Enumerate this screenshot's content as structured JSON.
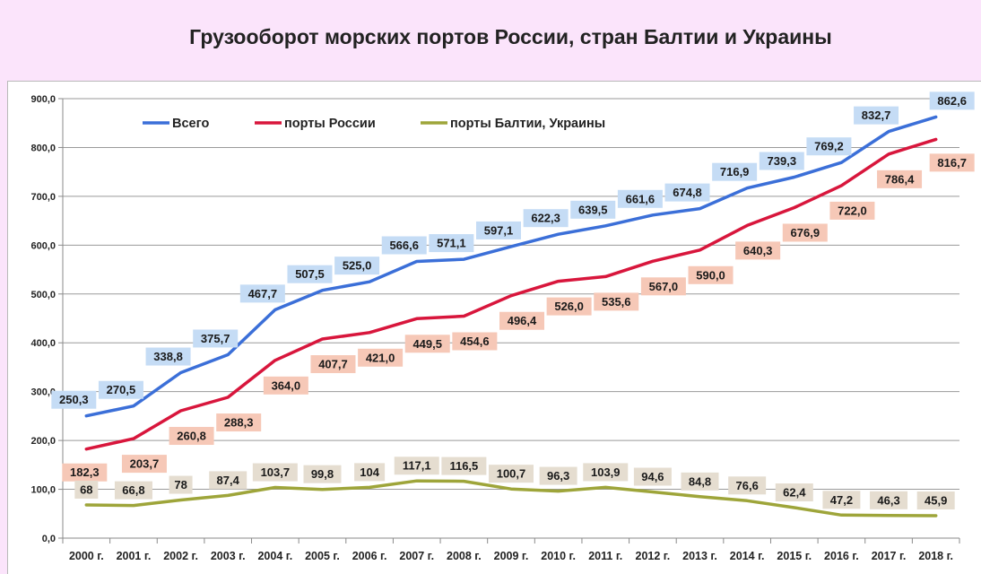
{
  "chart_data": {
    "type": "line",
    "title": "Грузооборот морских портов России, стран Балтии и Украины",
    "xlabel": "",
    "ylabel": "",
    "categories": [
      "2000 г.",
      "2001 г.",
      "2002 г.",
      "2003 г.",
      "2004 г.",
      "2005 г.",
      "2006 г.",
      "2007 г.",
      "2008 г.",
      "2009 г.",
      "2010 г.",
      "2011 г.",
      "2012 г.",
      "2013 г.",
      "2014 г.",
      "2015 г.",
      "2016 г.",
      "2017 г.",
      "2018 г."
    ],
    "ylim": [
      0,
      900
    ],
    "yticks": [
      0,
      100,
      200,
      300,
      400,
      500,
      600,
      700,
      800,
      900
    ],
    "ytick_labels": [
      "0,0",
      "100,0",
      "200,0",
      "300,0",
      "400,0",
      "500,0",
      "600,0",
      "700,0",
      "800,0",
      "900,0"
    ],
    "grid": true,
    "legend_position": "top-left",
    "series": [
      {
        "name": "Всего",
        "color": "#3b6fd8",
        "label_bg": "#c5dcf5",
        "values": [
          250.3,
          270.5,
          338.8,
          375.7,
          467.7,
          507.5,
          525.0,
          566.6,
          571.1,
          597.1,
          622.3,
          639.5,
          661.6,
          674.8,
          716.9,
          739.3,
          769.2,
          832.7,
          862.6
        ],
        "labels": [
          "250,3",
          "270,5",
          "338,8",
          "375,7",
          "467,7",
          "507,5",
          "525,0",
          "566,6",
          "571,1",
          "597,1",
          "622,3",
          "639,5",
          "661,6",
          "674,8",
          "716,9",
          "739,3",
          "769,2",
          "832,7",
          "862,6"
        ]
      },
      {
        "name": "порты России",
        "color": "#d8163c",
        "label_bg": "#f6c8b7",
        "values": [
          182.3,
          203.7,
          260.8,
          288.3,
          364.0,
          407.7,
          421.0,
          449.5,
          454.6,
          496.4,
          526.0,
          535.6,
          567.0,
          590.0,
          640.3,
          676.9,
          722.0,
          786.4,
          816.7
        ],
        "labels": [
          "182,3",
          "203,7",
          "260,8",
          "288,3",
          "364,0",
          "407,7",
          "421,0",
          "449,5",
          "454,6",
          "496,4",
          "526,0",
          "535,6",
          "567,0",
          "590,0",
          "640,3",
          "676,9",
          "722,0",
          "786,4",
          "816,7"
        ]
      },
      {
        "name": "порты Балтии, Украины",
        "color": "#9ea53a",
        "label_bg": "#e5ddd0",
        "values": [
          68,
          66.8,
          78,
          87.4,
          103.7,
          99.8,
          104,
          117.1,
          116.5,
          100.7,
          96.3,
          103.9,
          94.6,
          84.8,
          76.6,
          62.4,
          47.2,
          46.3,
          45.9
        ],
        "labels": [
          "68",
          "66,8",
          "78",
          "87,4",
          "103,7",
          "99,8",
          "104",
          "117,1",
          "116,5",
          "100,7",
          "96,3",
          "103,9",
          "94,6",
          "84,8",
          "76,6",
          "62,4",
          "47,2",
          "46,3",
          "45,9"
        ]
      }
    ]
  }
}
